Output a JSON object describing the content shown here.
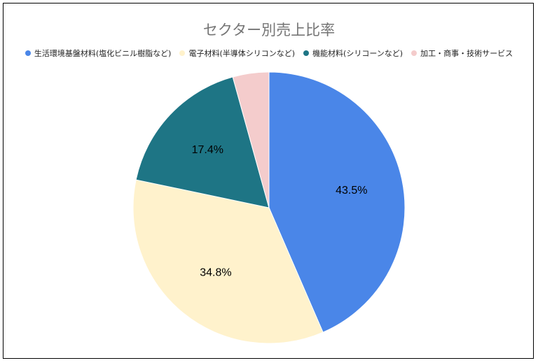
{
  "chart_data": {
    "type": "pie",
    "title": "セクター別売上比率",
    "categories": [
      "生活環境基盤材料(塩化ビニル樹脂など)",
      "電子材料(半導体シリコンなど)",
      "機能材料(シリコーンなど)",
      "加工・商事・技術サービス"
    ],
    "values": [
      43.5,
      34.8,
      17.4,
      4.3
    ],
    "data_labels": [
      "43.5%",
      "34.8%",
      "17.4%",
      ""
    ],
    "colors": [
      "#4a86e8",
      "#fff2cc",
      "#1e7585",
      "#f4cccc"
    ],
    "legend_position": "top",
    "start_angle_deg": 0,
    "direction": "clockwise"
  }
}
